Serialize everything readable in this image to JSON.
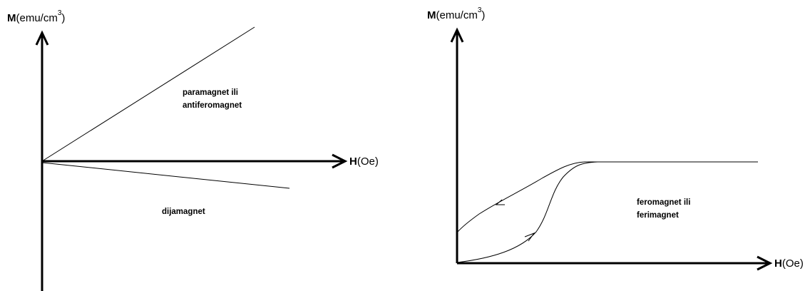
{
  "diagrams": [
    {
      "y_axis": {
        "bold": "M",
        "rest": "(emu/cm",
        "sup": "3",
        "close": ")"
      },
      "x_axis": {
        "bold": "H",
        "rest": "(Oe)"
      },
      "regions": [
        {
          "lines": [
            "paramagnet ili",
            "antiferomagnet"
          ]
        },
        {
          "lines": [
            "dijamagnet"
          ]
        }
      ]
    },
    {
      "y_axis": {
        "bold": "M",
        "rest": "(emu/cm",
        "sup": "3",
        "close": ")"
      },
      "x_axis": {
        "bold": "H",
        "rest": "(Oe)"
      },
      "regions": [
        {
          "lines": [
            "feromagnet ili",
            "ferimagnet"
          ]
        }
      ]
    }
  ],
  "colors": {
    "line": "#000000",
    "background": "#ffffff"
  }
}
